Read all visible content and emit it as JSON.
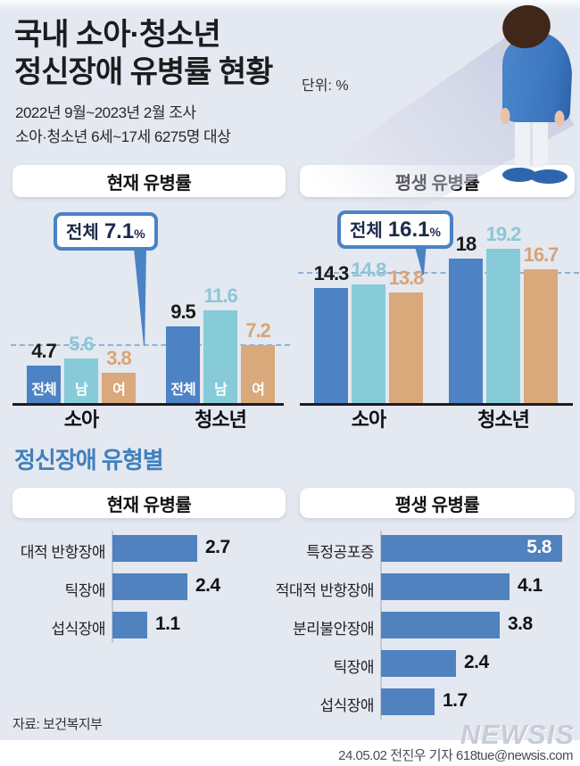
{
  "header": {
    "title_line1": "국내 소아·청소년",
    "title_line2": "정신장애 유병률 현황",
    "unit_label": "단위: %",
    "subtitle_line1": "2022년 9월~2023년 2월 조사",
    "subtitle_line2": "소아·청소년 6세~17세 6275명 대상"
  },
  "section2_title": "정신장애 유형별",
  "colors": {
    "background": "#e4e8f0",
    "bar_blue": "#4d82c4",
    "bar_cyan": "#87cbd9",
    "bar_tan": "#d9a87b",
    "hbar_blue": "#4f82be",
    "accent_blue": "#4080bd",
    "callout_border": "#4a82c6",
    "callout_text": "#1b2a4a",
    "dashed_guide": "#8fb2d6"
  },
  "chart_data": [
    {
      "type": "bar",
      "title": "현재 유병률",
      "overall_label": "전체",
      "overall": 7.1,
      "overall_unit": "%",
      "categories": [
        "소아",
        "청소년"
      ],
      "series": [
        {
          "name": "전체",
          "color": "#4d82c4",
          "label_color": "#1a1a1a",
          "values": [
            4.7,
            9.5
          ]
        },
        {
          "name": "남",
          "color": "#87cbd9",
          "label_color": "#8bc7d5",
          "values": [
            5.6,
            11.6
          ]
        },
        {
          "name": "여",
          "color": "#d9a87b",
          "label_color": "#d7a478",
          "values": [
            3.8,
            7.2
          ]
        }
      ],
      "show_series_labels": true,
      "ylabel": "",
      "xlabel": "",
      "grid": false
    },
    {
      "type": "bar",
      "title": "평생 유병률",
      "overall_label": "전체",
      "overall": 16.1,
      "overall_unit": "%",
      "categories": [
        "소아",
        "청소년"
      ],
      "series": [
        {
          "name": "전체",
          "color": "#4d82c4",
          "label_color": "#1a1a1a",
          "values": [
            14.3,
            18
          ]
        },
        {
          "name": "남",
          "color": "#87cbd9",
          "label_color": "#8bc7d5",
          "values": [
            14.8,
            19.2
          ]
        },
        {
          "name": "여",
          "color": "#d9a87b",
          "label_color": "#d7a478",
          "values": [
            13.8,
            16.7
          ]
        }
      ],
      "show_series_labels": false,
      "ylabel": "",
      "xlabel": "",
      "grid": false
    },
    {
      "type": "hbar",
      "title": "현재 유병률",
      "categories": [
        "대적 반항장애",
        "틱장애",
        "섭식장애"
      ],
      "values": [
        2.7,
        2.4,
        1.1
      ],
      "value_inside_first": false
    },
    {
      "type": "hbar",
      "title": "평생 유병률",
      "categories": [
        "특정공포증",
        "적대적 반항장애",
        "분리불안장애",
        "틱장애",
        "섭식장애"
      ],
      "values": [
        5.8,
        4.1,
        3.8,
        2.4,
        1.7
      ],
      "value_inside_first": true
    }
  ],
  "footer": {
    "source": "자료: 보건복지부",
    "credit": "24.05.02 전진우 기자 618tue@newsis.com",
    "watermark": "NEWSIS"
  }
}
